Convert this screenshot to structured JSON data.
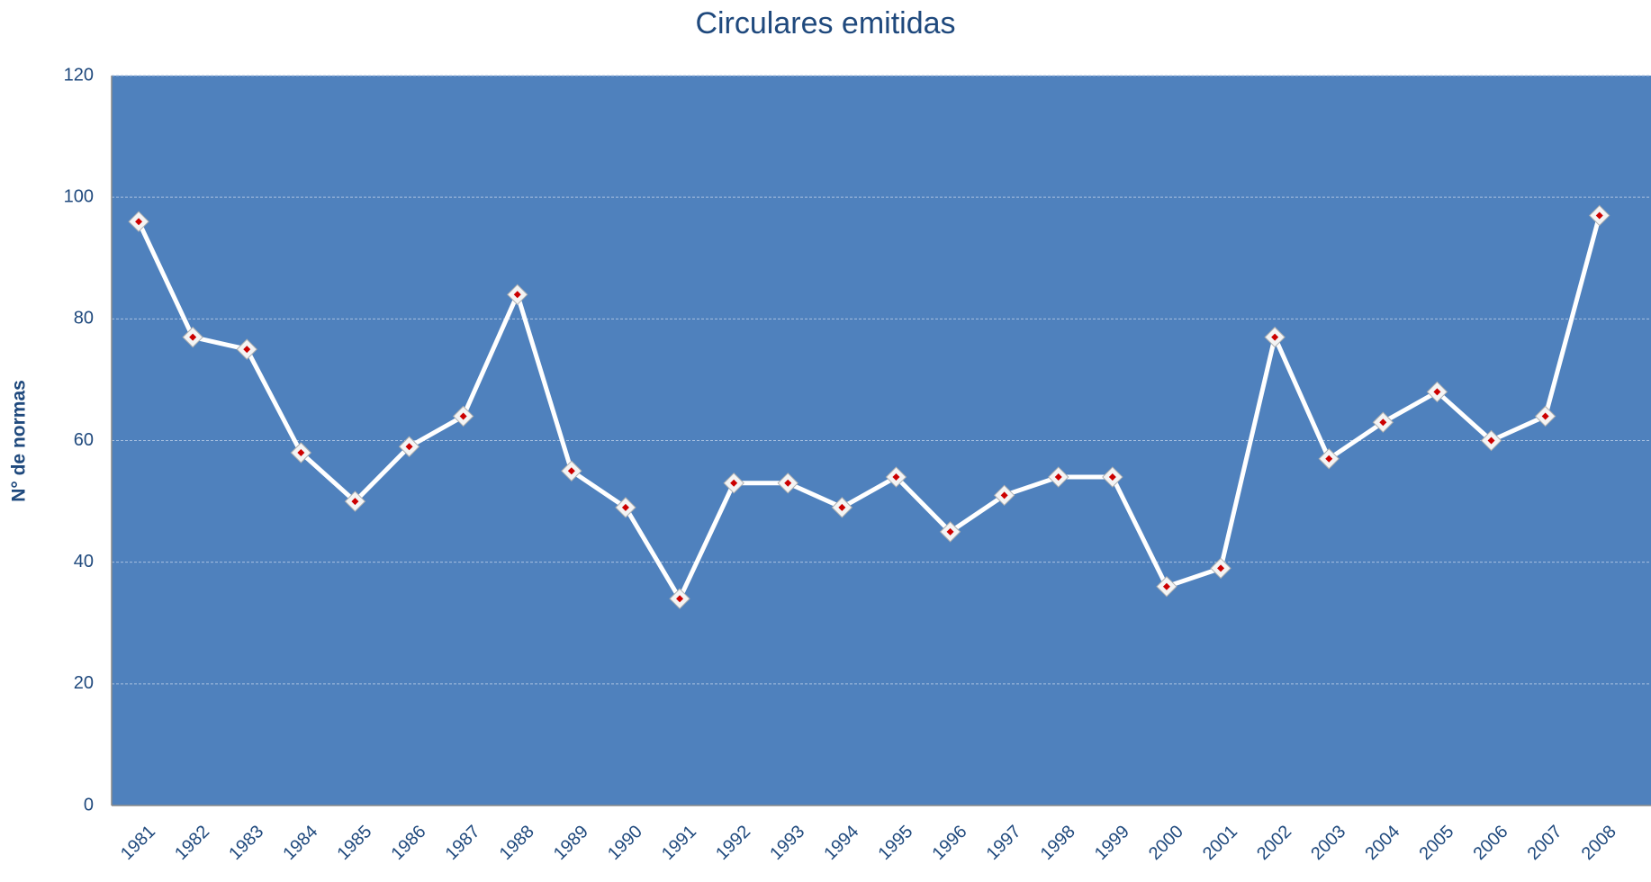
{
  "chart_data": {
    "type": "line",
    "title": "Circulares emitidas",
    "y_label": "N° de normas",
    "categories": [
      "1981",
      "1982",
      "1983",
      "1984",
      "1985",
      "1986",
      "1987",
      "1988",
      "1989",
      "1990",
      "1991",
      "1992",
      "1993",
      "1994",
      "1995",
      "1996",
      "1997",
      "1998",
      "1999",
      "2000",
      "2001",
      "2002",
      "2003",
      "2004",
      "2005",
      "2006",
      "2007",
      "2008"
    ],
    "values": [
      96,
      77,
      75,
      58,
      50,
      59,
      64,
      84,
      55,
      49,
      34,
      53,
      53,
      49,
      54,
      45,
      51,
      54,
      54,
      36,
      39,
      77,
      57,
      63,
      68,
      60,
      64,
      97
    ],
    "color": "#ffffff",
    "marker_color": "#cc0000",
    "plot_background": "#4f81bd",
    "ylim": [
      0,
      120
    ],
    "yticks": [
      0,
      20,
      40,
      60,
      80,
      100,
      120
    ],
    "grid": true
  }
}
